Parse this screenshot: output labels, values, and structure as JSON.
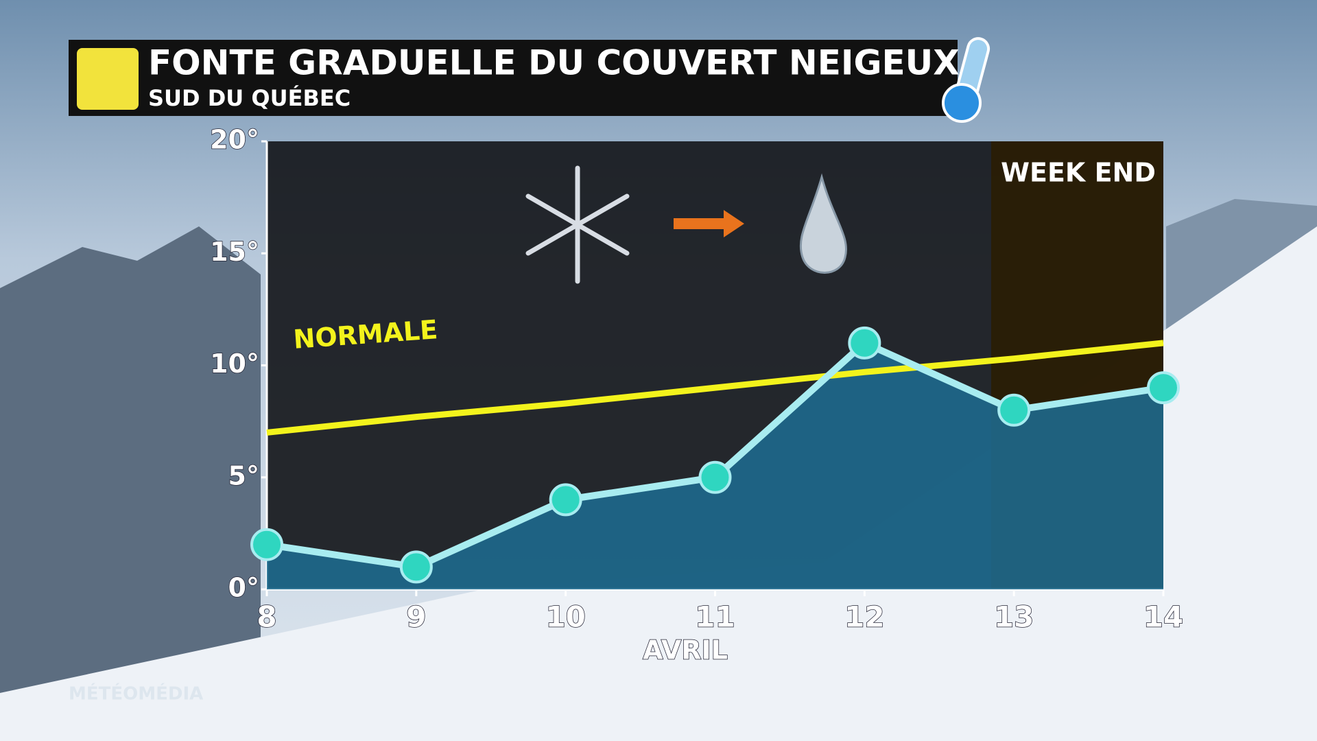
{
  "chart_data": {
    "type": "line",
    "title": "FONTE GRADUELLE DU COUVERT NEIGEUX",
    "subtitle": "SUD DU QUÉBEC",
    "x_label": "AVRIL",
    "annotation": "WEEK END",
    "brand": "MÉTÉOMÉDIA",
    "x": [
      8,
      9,
      10,
      11,
      12,
      13,
      14
    ],
    "xlim": [
      8,
      14
    ],
    "xticks": [
      8,
      9,
      10,
      11,
      12,
      13,
      14
    ],
    "ylim": [
      0,
      20
    ],
    "yticks": [
      {
        "value": 0,
        "label": "0°"
      },
      {
        "value": 5,
        "label": "5°"
      },
      {
        "value": 10,
        "label": "10°"
      },
      {
        "value": 15,
        "label": "15°"
      },
      {
        "value": 20,
        "label": "20°"
      }
    ],
    "grid": false,
    "series": [
      {
        "color": "#a8ecf0",
        "marker_color": "#2fd6c0",
        "fill": "#1d6d93",
        "values": [
          2,
          1,
          4,
          5,
          11,
          8,
          9
        ]
      },
      {
        "name": "NORMALE",
        "color": "#f3f31c",
        "values": [
          7,
          7.7,
          8.3,
          9,
          9.7,
          10.3,
          11
        ]
      }
    ]
  }
}
